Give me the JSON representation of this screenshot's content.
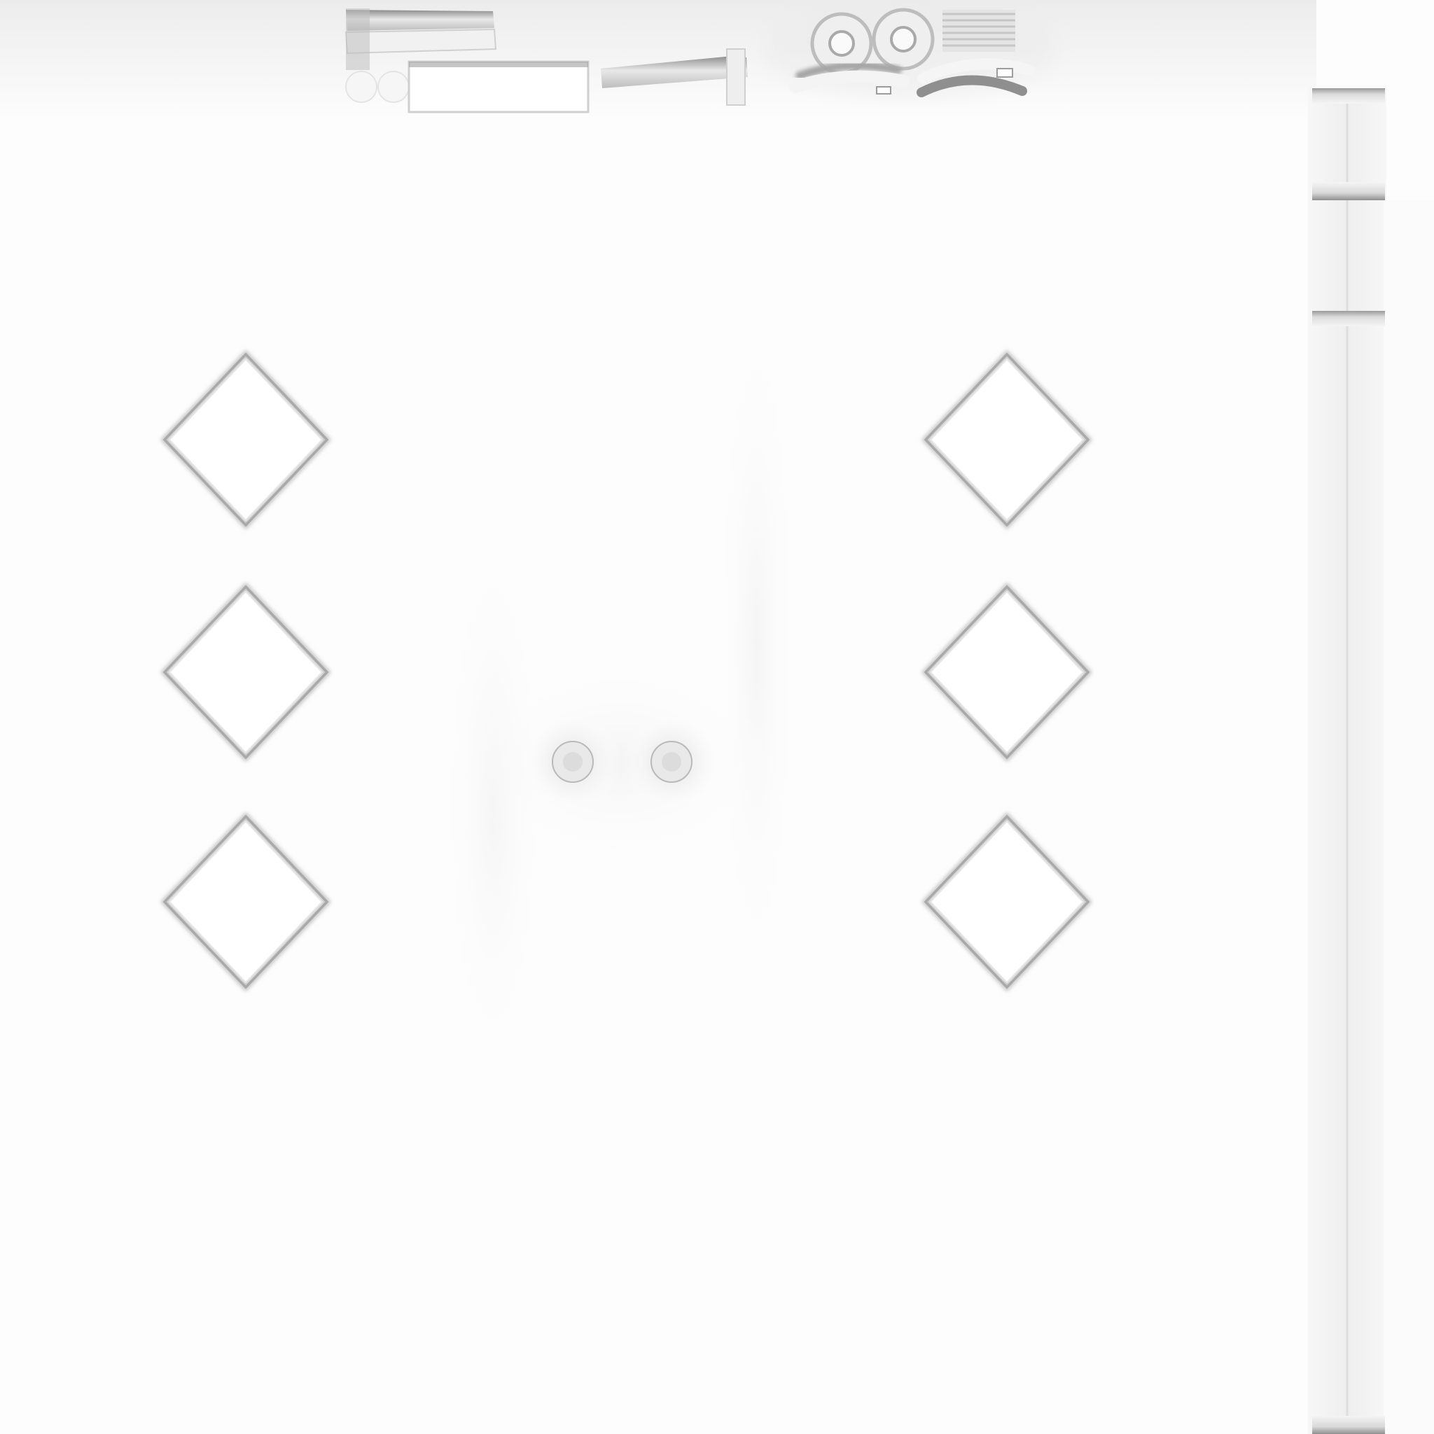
{
  "canvas": {
    "background": "#fdfdfd",
    "shadow_tone": "#b4b4b4",
    "mid_tone": "#d6d6d6",
    "light_tone": "#f2f2f2"
  },
  "diamond_grid": {
    "columns": 2,
    "rows": 3
  },
  "round_studs": {
    "count": 2
  },
  "side_strip": {
    "segments": 2
  },
  "top_parts": {
    "count": 9
  }
}
